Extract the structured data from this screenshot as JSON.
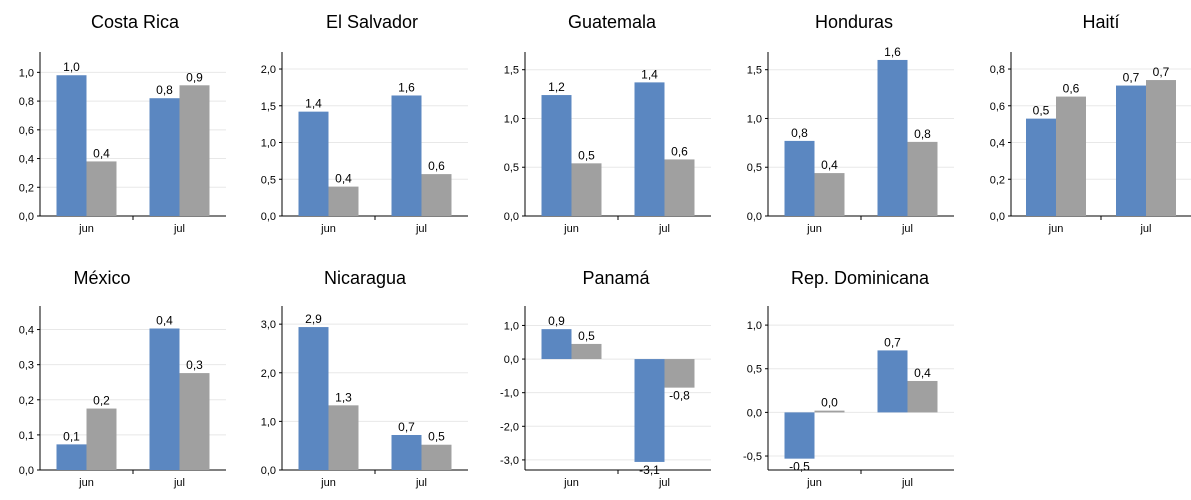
{
  "colors": {
    "series1": "#5b87c1",
    "series2": "#a0a0a0"
  },
  "chart_data": [
    {
      "type": "bar",
      "title": "Costa Rica",
      "categories": [
        "jun",
        "jul"
      ],
      "series": [
        {
          "values": [
            0.98,
            0.82
          ],
          "labels": [
            "1,0",
            "0,8"
          ]
        },
        {
          "values": [
            0.38,
            0.91
          ],
          "labels": [
            "0,4",
            "0,9"
          ]
        }
      ],
      "ylim": [
        0,
        1.1
      ],
      "yticks": [
        0,
        0.2,
        0.4,
        0.6,
        0.8,
        1.0
      ],
      "ytick_labels": [
        "0,0",
        "0,2",
        "0,4",
        "0,6",
        "0,8",
        "1,0"
      ]
    },
    {
      "type": "bar",
      "title": "El Salvador",
      "categories": [
        "jun",
        "jul"
      ],
      "series": [
        {
          "values": [
            1.42,
            1.64
          ],
          "labels": [
            "1,4",
            "1,6"
          ]
        },
        {
          "values": [
            0.4,
            0.57
          ],
          "labels": [
            "0,4",
            "0,6"
          ]
        }
      ],
      "ylim": [
        0,
        2.15
      ],
      "yticks": [
        0,
        0.5,
        1.0,
        1.5,
        2.0
      ],
      "ytick_labels": [
        "0,0",
        "0,5",
        "1,0",
        "1,5",
        "2,0"
      ]
    },
    {
      "type": "bar",
      "title": "Guatemala",
      "categories": [
        "jun",
        "jul"
      ],
      "series": [
        {
          "values": [
            1.24,
            1.37
          ],
          "labels": [
            "1,2",
            "1,4"
          ]
        },
        {
          "values": [
            0.54,
            0.58
          ],
          "labels": [
            "0,5",
            "0,6"
          ]
        }
      ],
      "ylim": [
        0,
        1.62
      ],
      "yticks": [
        0,
        0.5,
        1.0,
        1.5
      ],
      "ytick_labels": [
        "0,0",
        "0,5",
        "1,0",
        "1,5"
      ]
    },
    {
      "type": "bar",
      "title": "Honduras",
      "categories": [
        "jun",
        "jul"
      ],
      "series": [
        {
          "values": [
            0.77,
            1.6
          ],
          "labels": [
            "0,8",
            "1,6"
          ]
        },
        {
          "values": [
            0.44,
            0.76
          ],
          "labels": [
            "0,4",
            "0,8"
          ]
        }
      ],
      "ylim": [
        0,
        1.62
      ],
      "yticks": [
        0,
        0.5,
        1.0,
        1.5
      ],
      "ytick_labels": [
        "0,0",
        "0,5",
        "1,0",
        "1,5"
      ]
    },
    {
      "type": "bar",
      "title": "Haití",
      "categories": [
        "jun",
        "jul"
      ],
      "series": [
        {
          "values": [
            0.53,
            0.71
          ],
          "labels": [
            "0,5",
            "0,7"
          ]
        },
        {
          "values": [
            0.65,
            0.74
          ],
          "labels": [
            "0,6",
            "0,7"
          ]
        }
      ],
      "ylim": [
        0,
        0.86
      ],
      "yticks": [
        0,
        0.2,
        0.4,
        0.6,
        0.8
      ],
      "ytick_labels": [
        "0,0",
        "0,2",
        "0,4",
        "0,6",
        "0,8"
      ]
    },
    {
      "type": "bar",
      "title": "México",
      "categories": [
        "jun",
        "jul"
      ],
      "series": [
        {
          "values": [
            0.073,
            0.403
          ],
          "labels": [
            "0,1",
            "0,4"
          ]
        },
        {
          "values": [
            0.175,
            0.276
          ],
          "labels": [
            "0,2",
            "0,3"
          ]
        }
      ],
      "ylim": [
        0,
        0.45
      ],
      "yticks": [
        0,
        0.1,
        0.2,
        0.3,
        0.4
      ],
      "ytick_labels": [
        "0,0",
        "0,1",
        "0,2",
        "0,3",
        "0,4"
      ]
    },
    {
      "type": "bar",
      "title": "Nicaragua",
      "categories": [
        "jun",
        "jul"
      ],
      "series": [
        {
          "values": [
            2.94,
            0.72
          ],
          "labels": [
            "2,9",
            "0,7"
          ]
        },
        {
          "values": [
            1.33,
            0.52
          ],
          "labels": [
            "1,3",
            "0,5"
          ]
        }
      ],
      "ylim": [
        0,
        3.25
      ],
      "yticks": [
        0,
        1.0,
        2.0,
        3.0
      ],
      "ytick_labels": [
        "0,0",
        "1,0",
        "2,0",
        "3,0"
      ]
    },
    {
      "type": "bar",
      "title": "Panamá",
      "categories": [
        "jun",
        "jul"
      ],
      "series": [
        {
          "values": [
            0.89,
            -3.06
          ],
          "labels": [
            "0,9",
            "-3,1"
          ]
        },
        {
          "values": [
            0.45,
            -0.85
          ],
          "labels": [
            "0,5",
            "-0,8"
          ]
        }
      ],
      "ylim": [
        -3.3,
        1.4
      ],
      "yticks": [
        -3.0,
        -2.0,
        -1.0,
        0.0,
        1.0
      ],
      "ytick_labels": [
        "-3,0",
        "-2,0",
        "-1,0",
        "0,0",
        "1,0"
      ]
    },
    {
      "type": "bar",
      "title": "Rep. Dominicana",
      "categories": [
        "jun",
        "jul"
      ],
      "series": [
        {
          "values": [
            -0.53,
            0.71
          ],
          "labels": [
            "-0,5",
            "0,7"
          ]
        },
        {
          "values": [
            0.02,
            0.36
          ],
          "labels": [
            "0,0",
            "0,4"
          ]
        }
      ],
      "ylim": [
        -0.66,
        1.15
      ],
      "yticks": [
        -0.5,
        0.0,
        0.5,
        1.0
      ],
      "ytick_labels": [
        "-0,5",
        "0,0",
        "0,5",
        "1,0"
      ]
    }
  ]
}
